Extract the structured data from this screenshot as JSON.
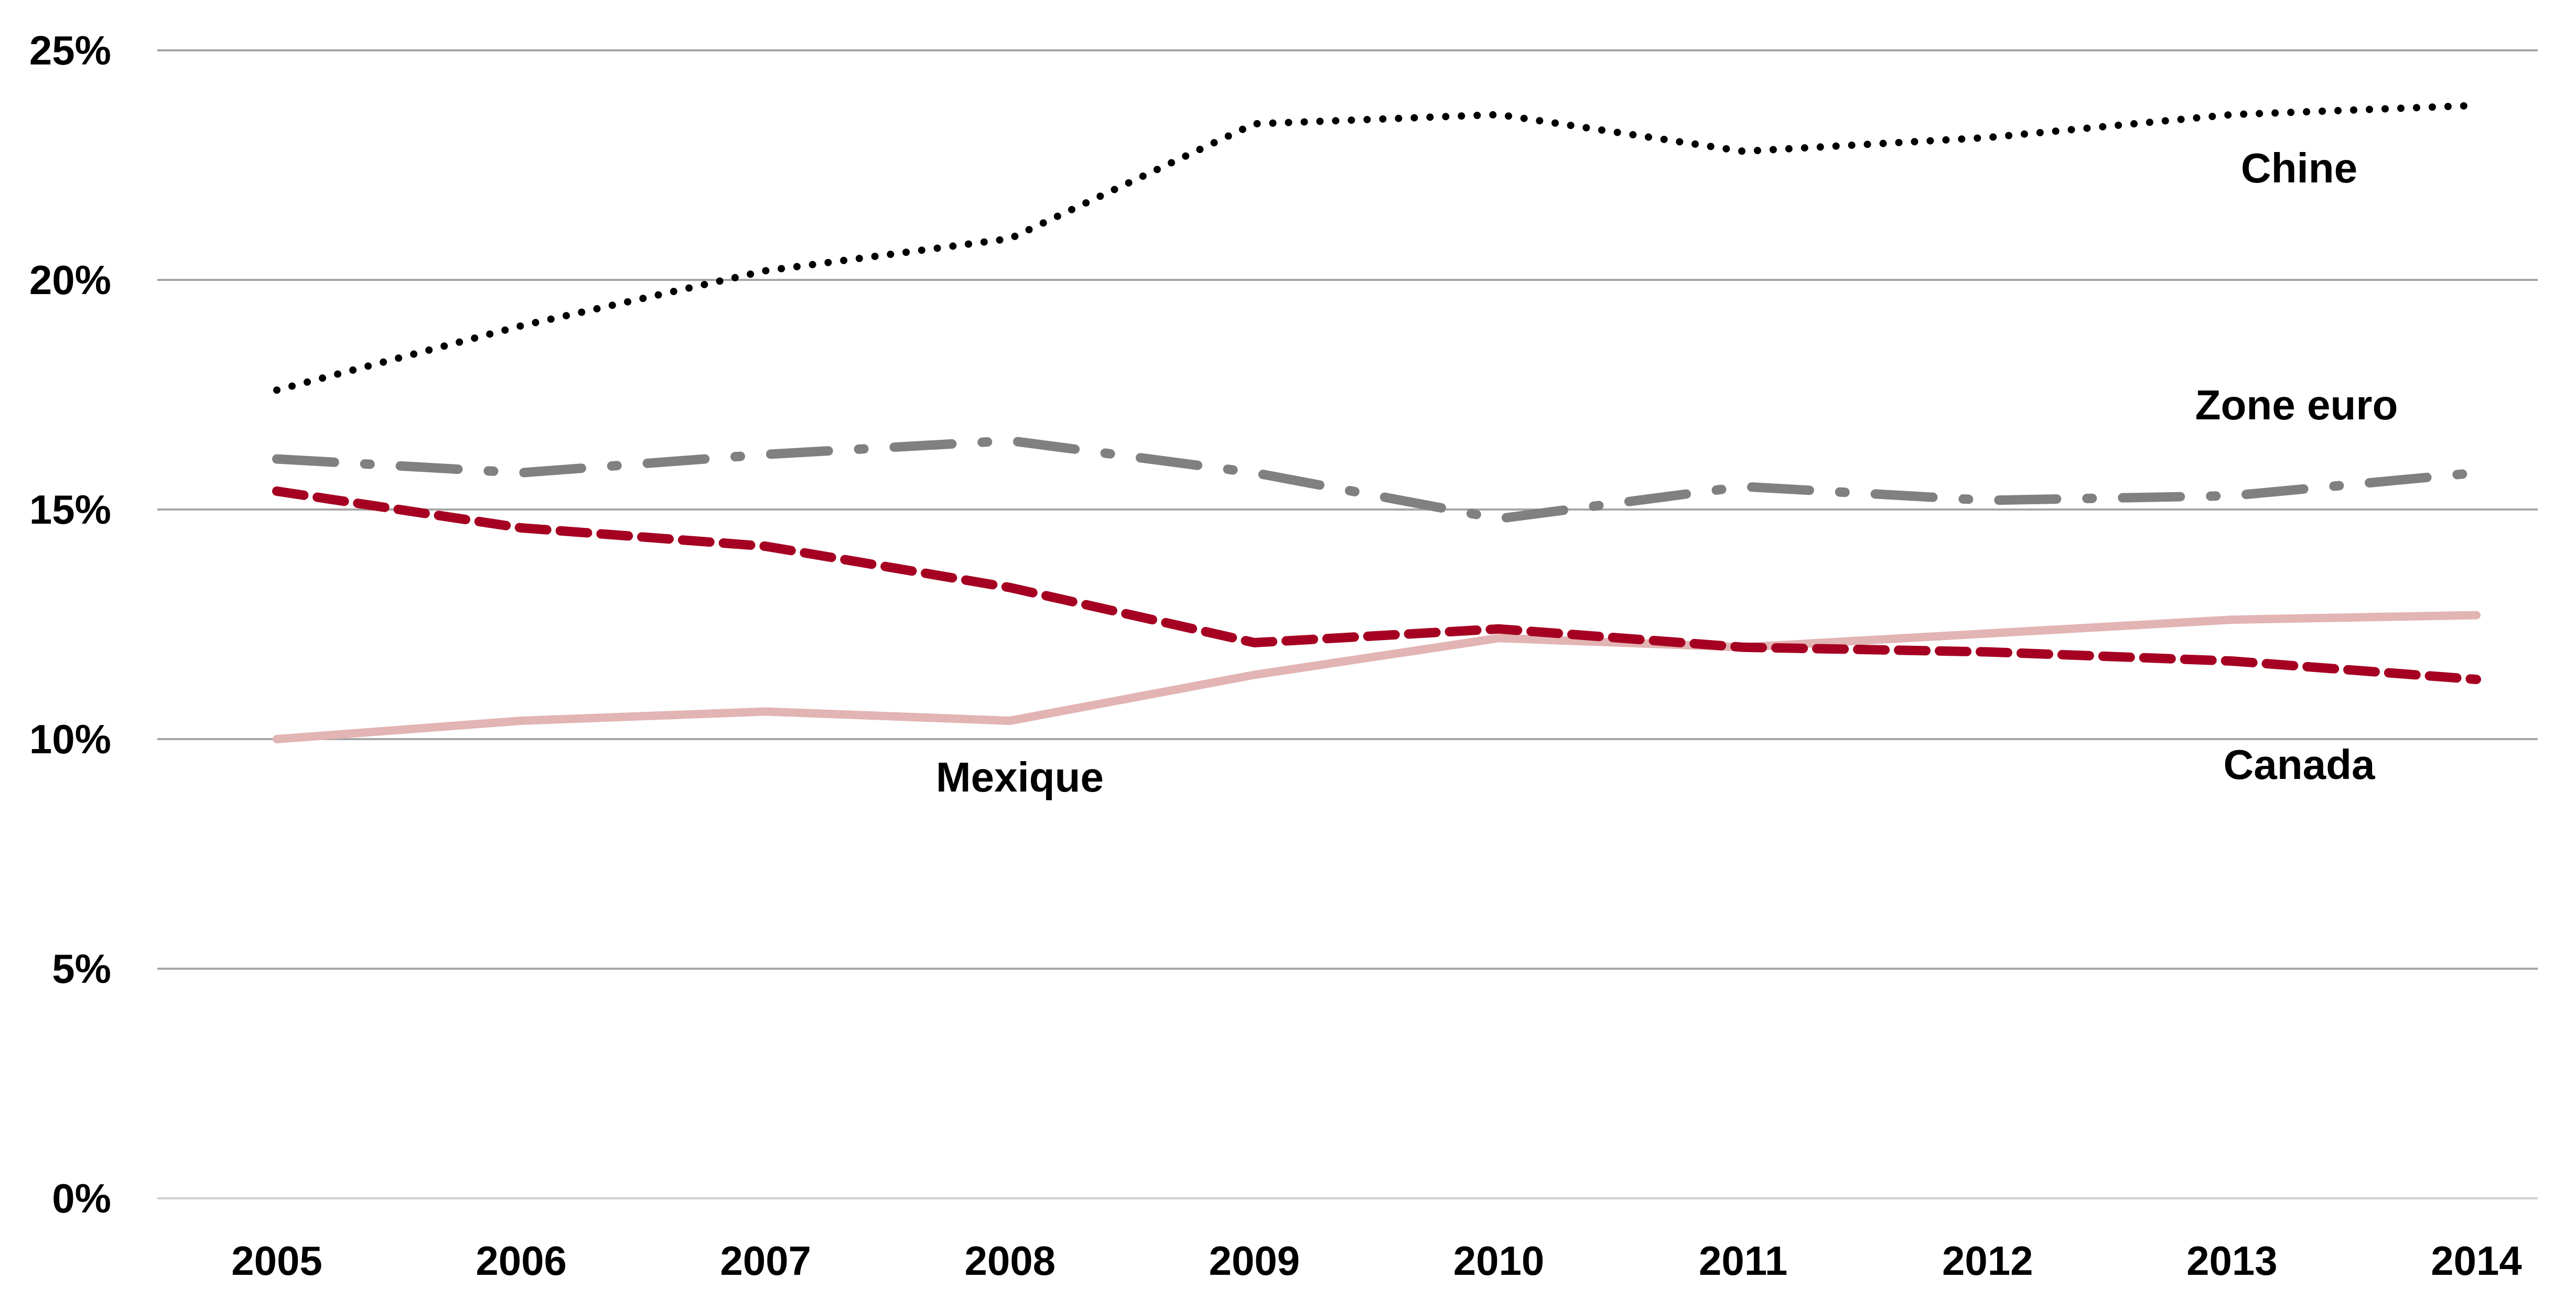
{
  "chart_data": {
    "type": "line",
    "categories": [
      "2005",
      "2006",
      "2007",
      "2008",
      "2009",
      "2010",
      "2011",
      "2012",
      "2013",
      "2014"
    ],
    "y_ticks": [
      "0%",
      "5%",
      "10%",
      "15%",
      "20%",
      "25%"
    ],
    "ylim": [
      0,
      25
    ],
    "grid": true,
    "legend": "inline labels",
    "series": [
      {
        "name": "Chine",
        "values": [
          17.6,
          19.0,
          20.2,
          20.9,
          23.4,
          23.6,
          22.8,
          23.1,
          23.6,
          23.8
        ],
        "color": "#000000",
        "style": "dotted"
      },
      {
        "name": "Zone euro",
        "values": [
          16.1,
          15.8,
          16.2,
          16.5,
          15.8,
          14.8,
          15.5,
          15.2,
          15.3,
          15.8
        ],
        "color": "#808080",
        "style": "dash-dot"
      },
      {
        "name": "Canada",
        "values": [
          15.4,
          14.6,
          14.2,
          13.3,
          12.1,
          12.4,
          12.0,
          11.9,
          11.7,
          11.3
        ],
        "color": "#A50021",
        "style": "dashed"
      },
      {
        "name": "Mexique",
        "values": [
          10.0,
          10.4,
          10.6,
          10.4,
          11.4,
          12.2,
          12.0,
          12.3,
          12.6,
          12.7
        ],
        "color": "#E2B4B4",
        "style": "solid"
      }
    ]
  }
}
